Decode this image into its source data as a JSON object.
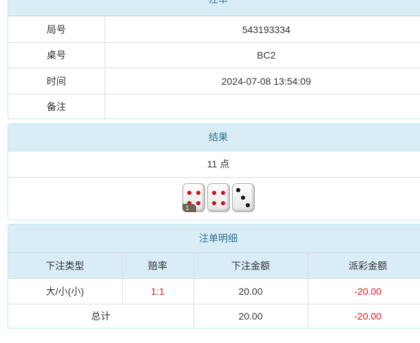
{
  "order": {
    "title": "注单",
    "rows": [
      {
        "label": "局号",
        "value": "543193334"
      },
      {
        "label": "桌号",
        "value": "BC2"
      },
      {
        "label": "时间",
        "value": "2024-07-08 13:54:09"
      },
      {
        "label": "备注",
        "value": ""
      }
    ]
  },
  "result": {
    "title": "结果",
    "points": "11 点",
    "dice": [
      4,
      4,
      3
    ],
    "badge": "1"
  },
  "detail": {
    "title": "注单明细",
    "headers": [
      "下注类型",
      "赔率",
      "下注金额",
      "派彩金额"
    ],
    "rows": [
      {
        "type": "大/小(小)",
        "odds": "1:1",
        "bet": "20.00",
        "payout": "-20.00"
      }
    ],
    "total": {
      "label": "总计",
      "bet": "20.00",
      "payout": "-20.00"
    }
  },
  "colors": {
    "header_bg": "#d9edf7",
    "header_text": "#31708f",
    "negative": "#e4161b"
  }
}
